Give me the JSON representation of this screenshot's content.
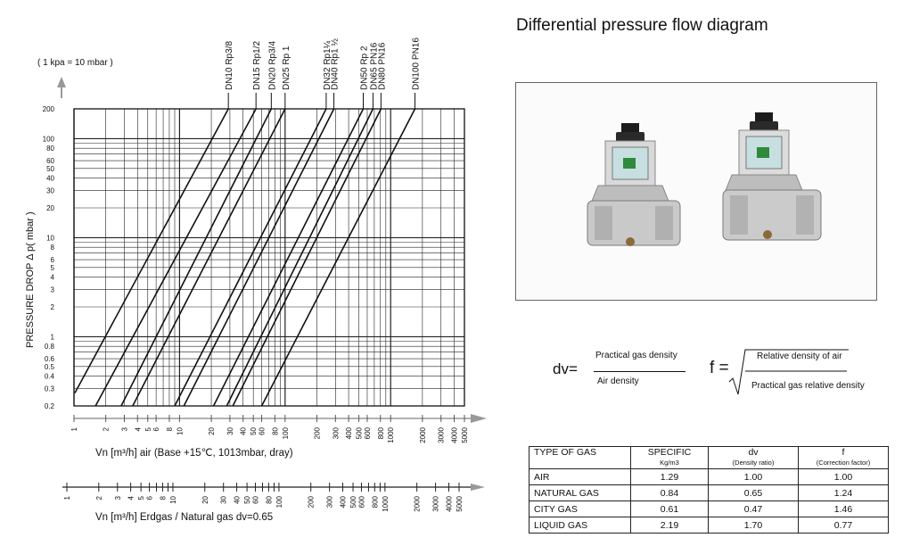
{
  "page_title": "Differential pressure flow diagram",
  "chart_data": {
    "type": "line",
    "unit_note": "( 1 kpa = 10 mbar )",
    "ylabel": "PRESSURE DROP   Δ p( mbar )",
    "xlabel_air": "Vn  [m³/h]  air  (Base +15℃, 1013mbar, dray)",
    "xlabel_gas": "Vn  [m³/h]  Erdgas / Natural gas  dv=0.65",
    "y_scale": "log",
    "x_scale": "log",
    "grid": true,
    "y_range": [
      0.2,
      200
    ],
    "x_range_air": [
      1,
      5000
    ],
    "y_ticks": [
      "0.2",
      "0.3",
      "0.4",
      "0.5",
      "0.6",
      "0.8",
      "1",
      "2",
      "3",
      "4",
      "5",
      "6",
      "8",
      "10",
      "20",
      "30",
      "40",
      "50",
      "60",
      "80",
      "100",
      "200"
    ],
    "x_ticks_air": [
      "1",
      "2",
      "3",
      "4",
      "5",
      "6",
      "8",
      "10",
      "20",
      "30",
      "40",
      "50",
      "60",
      "80",
      "100",
      "200",
      "300",
      "400",
      "500",
      "600",
      "800",
      "1000",
      "2000",
      "3000",
      "4000",
      "5000"
    ],
    "x_ticks_gas": [
      "1",
      "2",
      "3",
      "4",
      "5",
      "6",
      "8",
      "10",
      "20",
      "30",
      "40",
      "50",
      "60",
      "80",
      "100",
      "200",
      "300",
      "400",
      "500",
      "600",
      "800",
      "1000",
      "2000",
      "3000",
      "4000",
      "5000"
    ],
    "series": [
      {
        "name": "DN10  Rp3/8",
        "points": [
          [
            1.02,
            0.27
          ],
          [
            29,
            200
          ]
        ]
      },
      {
        "name": "DN15  Rp1/2",
        "points": [
          [
            1.6,
            0.2
          ],
          [
            53,
            200
          ]
        ]
      },
      {
        "name": "DN20  Rp3/4",
        "points": [
          [
            2.8,
            0.2
          ],
          [
            74,
            200
          ]
        ]
      },
      {
        "name": "DN25  Rp 1",
        "points": [
          [
            3.6,
            0.2
          ],
          [
            100,
            200
          ]
        ]
      },
      {
        "name": "DN32  Rp1¼",
        "points": [
          [
            9,
            0.2
          ],
          [
            245,
            200
          ]
        ]
      },
      {
        "name": "DN40  Rp1  ½",
        "points": [
          [
            11,
            0.2
          ],
          [
            290,
            200
          ]
        ]
      },
      {
        "name": "DN50  Rp 2",
        "points": [
          [
            21,
            0.2
          ],
          [
            550,
            200
          ]
        ]
      },
      {
        "name": "DN65  PN16",
        "points": [
          [
            28,
            0.2
          ],
          [
            680,
            200
          ]
        ]
      },
      {
        "name": "DN80  PN16",
        "points": [
          [
            32,
            0.2
          ],
          [
            810,
            200
          ]
        ]
      },
      {
        "name": "DN100  PN16",
        "points": [
          [
            60,
            0.2
          ],
          [
            1700,
            200
          ]
        ]
      }
    ]
  },
  "formula": {
    "dv_label": "dv=",
    "dv_numerator": "Practical gas density",
    "dv_denominator": "Air density",
    "f_label": "f =",
    "f_numerator": "Relative density of air",
    "f_denominator": "Practical gas relative density"
  },
  "gas_table": {
    "headers": [
      {
        "title": "TYPE OF GAS",
        "sub": ""
      },
      {
        "title": "SPECIFIC",
        "sub": "Kg/m3"
      },
      {
        "title": "dv",
        "sub": "(Density ratio)"
      },
      {
        "title": "f",
        "sub": "(Correction factor)"
      }
    ],
    "rows": [
      {
        "gas": "AIR",
        "specific": "1.29",
        "dv": "1.00",
        "f": "1.00"
      },
      {
        "gas": "NATURAL GAS",
        "specific": "0.84",
        "dv": "0.65",
        "f": "1.24"
      },
      {
        "gas": "CITY GAS",
        "specific": "0.61",
        "dv": "0.47",
        "f": "1.46"
      },
      {
        "gas": "LIQUID GAS",
        "specific": "2.19",
        "dv": "1.70",
        "f": "0.77"
      }
    ]
  }
}
